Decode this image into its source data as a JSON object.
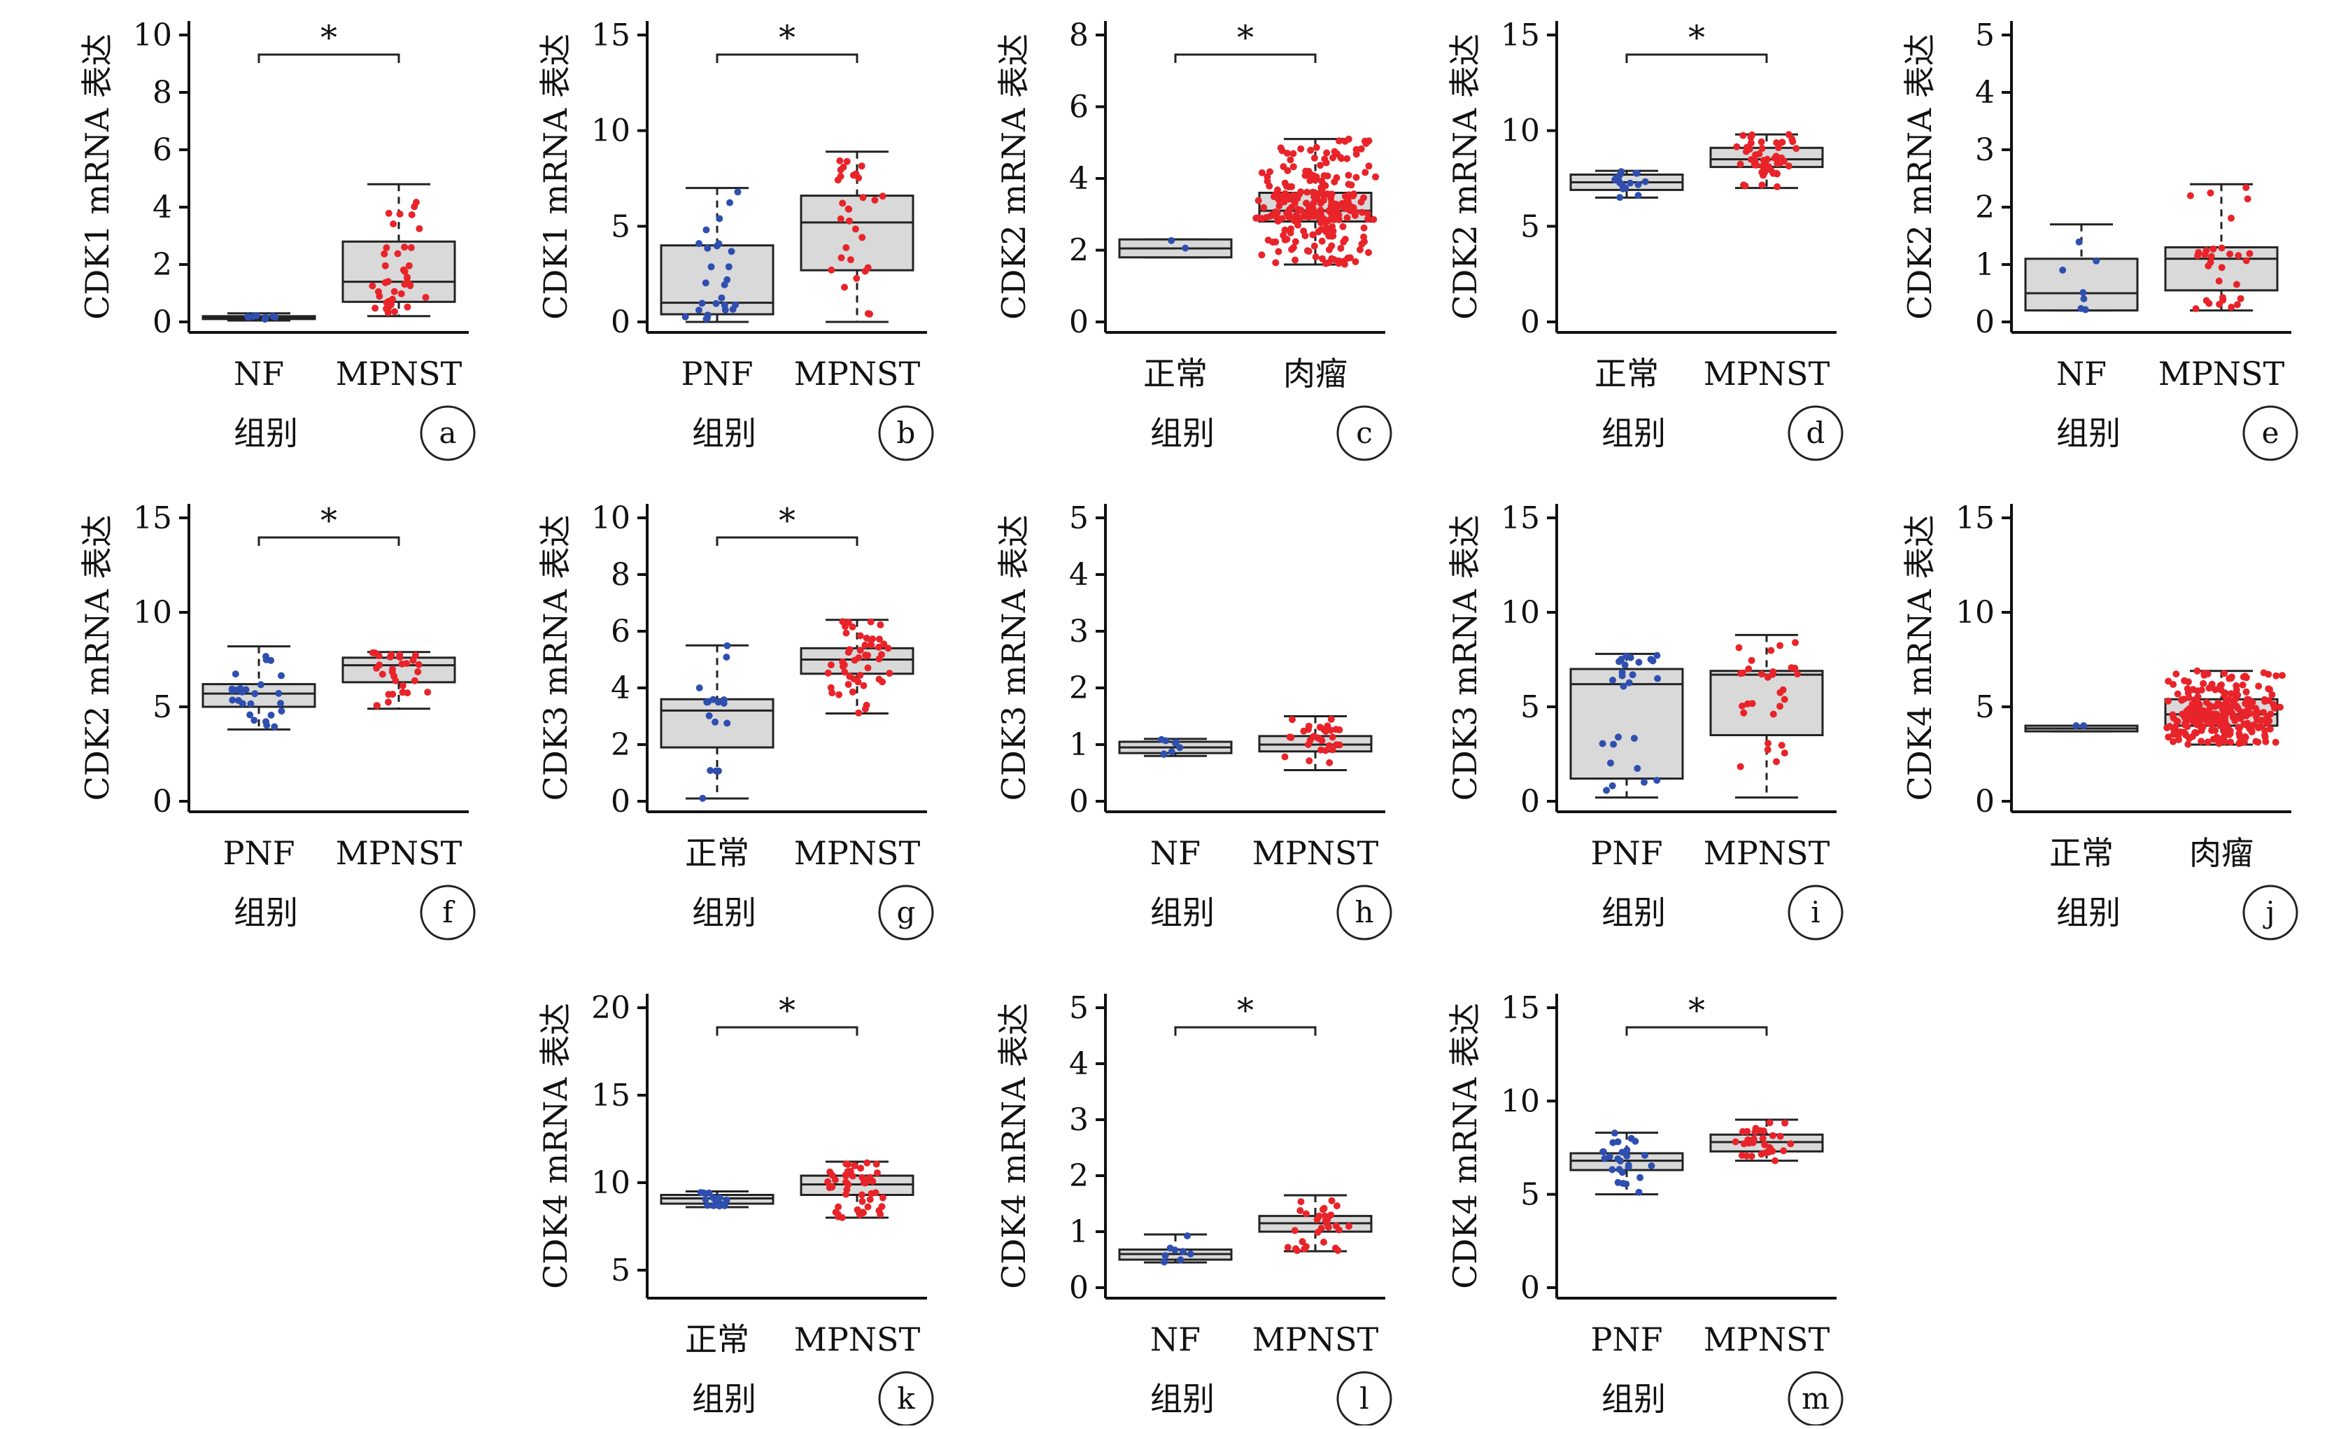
{
  "colors": {
    "normal": "#2f4fb0",
    "tumor": "#e8242a",
    "box": "#d9d9d9",
    "axis": "#111111"
  },
  "xlabel": "组别",
  "chart_data": [
    {
      "type": "box",
      "panel": "a",
      "ylabel": "CDK1 mRNA 表达",
      "categories": [
        "NF",
        "MPNST"
      ],
      "ylim": [
        0,
        10
      ],
      "yticks": [
        0,
        2,
        4,
        6,
        8,
        10
      ],
      "significance": "*",
      "series": [
        {
          "name": "NF",
          "color": "#2f4fb0",
          "n": 8,
          "box": {
            "min": 0.05,
            "q1": 0.1,
            "median": 0.15,
            "q3": 0.2,
            "max": 0.3
          }
        },
        {
          "name": "MPNST",
          "color": "#e8242a",
          "n": 40,
          "box": {
            "min": 0.2,
            "q1": 0.7,
            "median": 1.4,
            "q3": 2.8,
            "max": 4.8
          }
        }
      ]
    },
    {
      "type": "box",
      "panel": "b",
      "ylabel": "CDK1 mRNA 表达",
      "categories": [
        "PNF",
        "MPNST"
      ],
      "ylim": [
        0,
        15
      ],
      "yticks": [
        0,
        5,
        10,
        15
      ],
      "significance": "*",
      "series": [
        {
          "name": "PNF",
          "color": "#2f4fb0",
          "n": 26,
          "box": {
            "min": 0.0,
            "q1": 0.4,
            "median": 1.0,
            "q3": 4.0,
            "max": 7.0
          }
        },
        {
          "name": "MPNST",
          "color": "#e8242a",
          "n": 30,
          "box": {
            "min": 0.0,
            "q1": 2.7,
            "median": 5.2,
            "q3": 6.6,
            "max": 8.9
          }
        }
      ]
    },
    {
      "type": "box",
      "panel": "c",
      "ylabel": "CDK2 mRNA 表达",
      "categories": [
        "正常",
        "肉瘤"
      ],
      "ylim": [
        0,
        8
      ],
      "yticks": [
        0,
        2,
        4,
        6,
        8
      ],
      "significance": "*",
      "series": [
        {
          "name": "正常",
          "color": "#2f4fb0",
          "n": 2,
          "box": {
            "min": 1.8,
            "q1": 1.8,
            "median": 2.05,
            "q3": 2.3,
            "max": 2.3
          }
        },
        {
          "name": "肉瘤",
          "color": "#e8242a",
          "n": 260,
          "box": {
            "min": 1.6,
            "q1": 2.8,
            "median": 3.1,
            "q3": 3.6,
            "max": 5.1
          }
        }
      ]
    },
    {
      "type": "box",
      "panel": "d",
      "ylabel": "CDK2 mRNA 表达",
      "categories": [
        "正常",
        "MPNST"
      ],
      "ylim": [
        0,
        15
      ],
      "yticks": [
        0,
        5,
        10,
        15
      ],
      "significance": "*",
      "series": [
        {
          "name": "正常",
          "color": "#2f4fb0",
          "n": 16,
          "box": {
            "min": 6.5,
            "q1": 6.9,
            "median": 7.3,
            "q3": 7.7,
            "max": 7.9
          }
        },
        {
          "name": "MPNST",
          "color": "#e8242a",
          "n": 50,
          "box": {
            "min": 7.0,
            "q1": 8.1,
            "median": 8.5,
            "q3": 9.1,
            "max": 9.8
          }
        }
      ]
    },
    {
      "type": "box",
      "panel": "e",
      "ylabel": "CDK2 mRNA 表达",
      "categories": [
        "NF",
        "MPNST"
      ],
      "ylim": [
        0,
        5
      ],
      "yticks": [
        0,
        1,
        2,
        3,
        4,
        5
      ],
      "significance": "",
      "series": [
        {
          "name": "NF",
          "color": "#2f4fb0",
          "n": 7,
          "box": {
            "min": 0.2,
            "q1": 0.2,
            "median": 0.5,
            "q3": 1.1,
            "max": 1.7
          }
        },
        {
          "name": "MPNST",
          "color": "#e8242a",
          "n": 30,
          "box": {
            "min": 0.2,
            "q1": 0.55,
            "median": 1.1,
            "q3": 1.3,
            "max": 2.4
          }
        }
      ]
    },
    {
      "type": "box",
      "panel": "f",
      "ylabel": "CDK2 mRNA 表达",
      "categories": [
        "PNF",
        "MPNST"
      ],
      "ylim": [
        0,
        15
      ],
      "yticks": [
        0,
        5,
        10,
        15
      ],
      "significance": "*",
      "series": [
        {
          "name": "PNF",
          "color": "#2f4fb0",
          "n": 26,
          "box": {
            "min": 3.8,
            "q1": 5.0,
            "median": 5.7,
            "q3": 6.2,
            "max": 8.2
          }
        },
        {
          "name": "MPNST",
          "color": "#e8242a",
          "n": 30,
          "box": {
            "min": 4.9,
            "q1": 6.3,
            "median": 7.2,
            "q3": 7.6,
            "max": 7.9
          }
        }
      ]
    },
    {
      "type": "box",
      "panel": "g",
      "ylabel": "CDK3 mRNA 表达",
      "categories": [
        "正常",
        "MPNST"
      ],
      "ylim": [
        0,
        10
      ],
      "yticks": [
        0,
        2,
        4,
        6,
        8,
        10
      ],
      "significance": "*",
      "series": [
        {
          "name": "正常",
          "color": "#2f4fb0",
          "n": 16,
          "box": {
            "min": 0.1,
            "q1": 1.9,
            "median": 3.2,
            "q3": 3.6,
            "max": 5.5
          }
        },
        {
          "name": "MPNST",
          "color": "#e8242a",
          "n": 50,
          "box": {
            "min": 3.1,
            "q1": 4.5,
            "median": 5.0,
            "q3": 5.4,
            "max": 6.4
          }
        }
      ]
    },
    {
      "type": "box",
      "panel": "h",
      "ylabel": "CDK3 mRNA 表达",
      "categories": [
        "NF",
        "MPNST"
      ],
      "ylim": [
        0,
        5
      ],
      "yticks": [
        0,
        1,
        2,
        3,
        4,
        5
      ],
      "significance": "",
      "series": [
        {
          "name": "NF",
          "color": "#2f4fb0",
          "n": 8,
          "box": {
            "min": 0.8,
            "q1": 0.85,
            "median": 0.95,
            "q3": 1.05,
            "max": 1.1
          }
        },
        {
          "name": "MPNST",
          "color": "#e8242a",
          "n": 30,
          "box": {
            "min": 0.55,
            "q1": 0.88,
            "median": 1.0,
            "q3": 1.15,
            "max": 1.5
          }
        }
      ]
    },
    {
      "type": "box",
      "panel": "i",
      "ylabel": "CDK3 mRNA 表达",
      "categories": [
        "PNF",
        "MPNST"
      ],
      "ylim": [
        0,
        15
      ],
      "yticks": [
        0,
        5,
        10,
        15
      ],
      "significance": "",
      "series": [
        {
          "name": "PNF",
          "color": "#2f4fb0",
          "n": 26,
          "box": {
            "min": 0.2,
            "q1": 1.2,
            "median": 6.2,
            "q3": 7.0,
            "max": 7.8
          }
        },
        {
          "name": "MPNST",
          "color": "#e8242a",
          "n": 30,
          "box": {
            "min": 0.2,
            "q1": 3.5,
            "median": 6.7,
            "q3": 6.9,
            "max": 8.8
          }
        }
      ]
    },
    {
      "type": "box",
      "panel": "j",
      "ylabel": "CDK4 mRNA 表达",
      "categories": [
        "正常",
        "肉瘤"
      ],
      "ylim": [
        0,
        15
      ],
      "yticks": [
        0,
        5,
        10,
        15
      ],
      "significance": "",
      "series": [
        {
          "name": "正常",
          "color": "#2f4fb0",
          "n": 2,
          "box": {
            "min": 3.7,
            "q1": 3.7,
            "median": 3.85,
            "q3": 4.0,
            "max": 4.0
          }
        },
        {
          "name": "肉瘤",
          "color": "#e8242a",
          "n": 260,
          "box": {
            "min": 3.0,
            "q1": 4.0,
            "median": 4.6,
            "q3": 5.4,
            "max": 6.9
          }
        }
      ]
    },
    {
      "type": "box",
      "panel": "k",
      "ylabel": "CDK4 mRNA 表达",
      "categories": [
        "正常",
        "MPNST"
      ],
      "ylim": [
        4,
        20
      ],
      "yticks": [
        5,
        10,
        15,
        20
      ],
      "significance": "*",
      "series": [
        {
          "name": "正常",
          "color": "#2f4fb0",
          "n": 16,
          "box": {
            "min": 8.6,
            "q1": 8.8,
            "median": 9.1,
            "q3": 9.3,
            "max": 9.5
          }
        },
        {
          "name": "MPNST",
          "color": "#e8242a",
          "n": 50,
          "box": {
            "min": 8.0,
            "q1": 9.3,
            "median": 9.9,
            "q3": 10.4,
            "max": 11.2
          }
        }
      ]
    },
    {
      "type": "box",
      "panel": "l",
      "ylabel": "CDK4 mRNA 表达",
      "categories": [
        "NF",
        "MPNST"
      ],
      "ylim": [
        0,
        5
      ],
      "yticks": [
        0,
        1,
        2,
        3,
        4,
        5
      ],
      "significance": "*",
      "series": [
        {
          "name": "NF",
          "color": "#2f4fb0",
          "n": 8,
          "box": {
            "min": 0.45,
            "q1": 0.5,
            "median": 0.6,
            "q3": 0.68,
            "max": 0.95
          }
        },
        {
          "name": "MPNST",
          "color": "#e8242a",
          "n": 30,
          "box": {
            "min": 0.65,
            "q1": 1.0,
            "median": 1.15,
            "q3": 1.28,
            "max": 1.65
          }
        }
      ]
    },
    {
      "type": "box",
      "panel": "m",
      "ylabel": "CDK4 mRNA 表达",
      "categories": [
        "PNF",
        "MPNST"
      ],
      "ylim": [
        0,
        15
      ],
      "yticks": [
        0,
        5,
        10,
        15
      ],
      "significance": "*",
      "series": [
        {
          "name": "PNF",
          "color": "#2f4fb0",
          "n": 26,
          "box": {
            "min": 5.0,
            "q1": 6.3,
            "median": 6.8,
            "q3": 7.2,
            "max": 8.3
          }
        },
        {
          "name": "MPNST",
          "color": "#e8242a",
          "n": 30,
          "box": {
            "min": 6.8,
            "q1": 7.3,
            "median": 7.8,
            "q3": 8.2,
            "max": 9.0
          }
        }
      ]
    }
  ]
}
